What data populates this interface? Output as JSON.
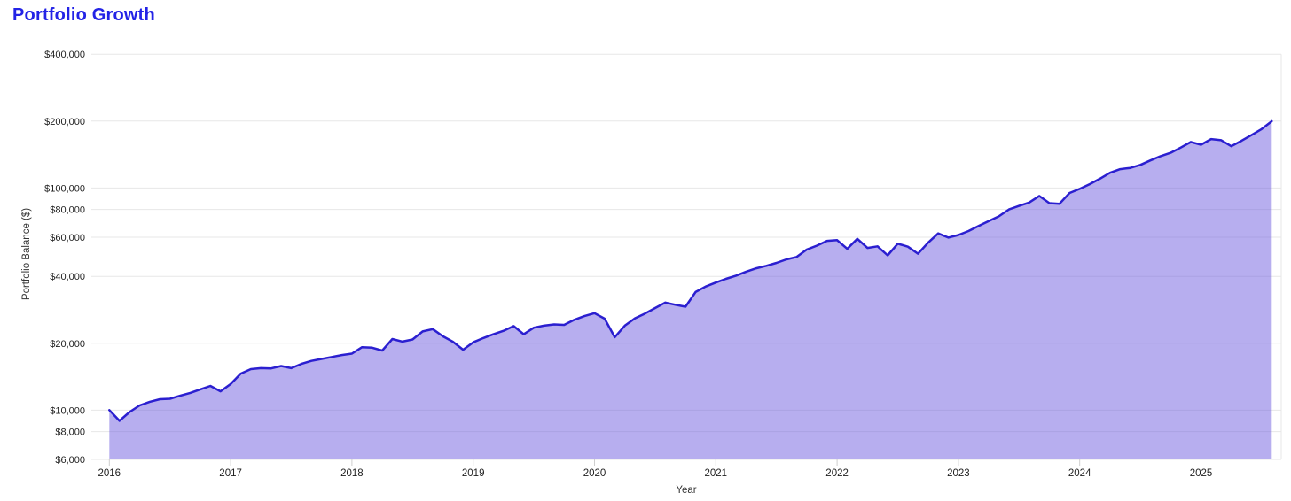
{
  "header": {
    "title": "Portfolio Growth"
  },
  "chart_data": {
    "type": "area",
    "title": "Portfolio Growth",
    "xlabel": "Year",
    "ylabel": "Portfolio Balance ($)",
    "frequency": "monthly",
    "x_start": "2016-01",
    "x_end": "2025-08",
    "y_scale": "log",
    "ylim": [
      6000,
      400000
    ],
    "grid": "horizontal-only",
    "legend": "none",
    "x_ticks": [
      "2016",
      "2017",
      "2018",
      "2019",
      "2020",
      "2021",
      "2022",
      "2023",
      "2024",
      "2025"
    ],
    "y_ticks": [
      {
        "label": "$400,000",
        "value": 400000
      },
      {
        "label": "$200,000",
        "value": 200000
      },
      {
        "label": "$100,000",
        "value": 100000
      },
      {
        "label": "$80,000",
        "value": 80000
      },
      {
        "label": "$60,000",
        "value": 60000
      },
      {
        "label": "$40,000",
        "value": 40000
      },
      {
        "label": "$20,000",
        "value": 20000
      },
      {
        "label": "$10,000",
        "value": 10000
      },
      {
        "label": "$8,000",
        "value": 8000
      },
      {
        "label": "$6,000",
        "value": 6000
      }
    ],
    "series": [
      {
        "name": "Portfolio Balance",
        "values": [
          10000,
          8950,
          9800,
          10500,
          10900,
          11200,
          11250,
          11600,
          11950,
          12400,
          12850,
          12150,
          13100,
          14600,
          15300,
          15450,
          15400,
          15800,
          15450,
          16150,
          16650,
          17000,
          17350,
          17700,
          17950,
          19200,
          19100,
          18550,
          20900,
          20350,
          20800,
          22600,
          23150,
          21500,
          20300,
          18700,
          20200,
          21100,
          21950,
          22750,
          23880,
          21950,
          23500,
          24000,
          24300,
          24200,
          25500,
          26500,
          27300,
          25800,
          21300,
          24000,
          25900,
          27200,
          28800,
          30500,
          29800,
          29200,
          34000,
          36000,
          37500,
          39000,
          40300,
          42000,
          43500,
          44600,
          46000,
          47700,
          48900,
          52800,
          55000,
          57800,
          58200,
          53200,
          59000,
          53700,
          54600,
          49700,
          56100,
          54400,
          50600,
          56700,
          62400,
          59800,
          61400,
          64000,
          67500,
          71000,
          74500,
          80000,
          83000,
          86000,
          92000,
          85400,
          84900,
          94900,
          99000,
          104000,
          110000,
          117000,
          121500,
          123000,
          127000,
          133000,
          139000,
          144000,
          152000,
          161000,
          156500,
          166000,
          164000,
          154000,
          163000,
          173000,
          184000,
          199500
        ]
      }
    ],
    "colors": {
      "title": "#2323e6",
      "line": "#2b1fd0",
      "fill": "rgba(111,93,223,0.5)",
      "gridline": "#e7e7e7",
      "tick_mark": "#cfcfcf",
      "tick_text": "#1f1f1f",
      "axis_title_text": "#333333"
    }
  }
}
